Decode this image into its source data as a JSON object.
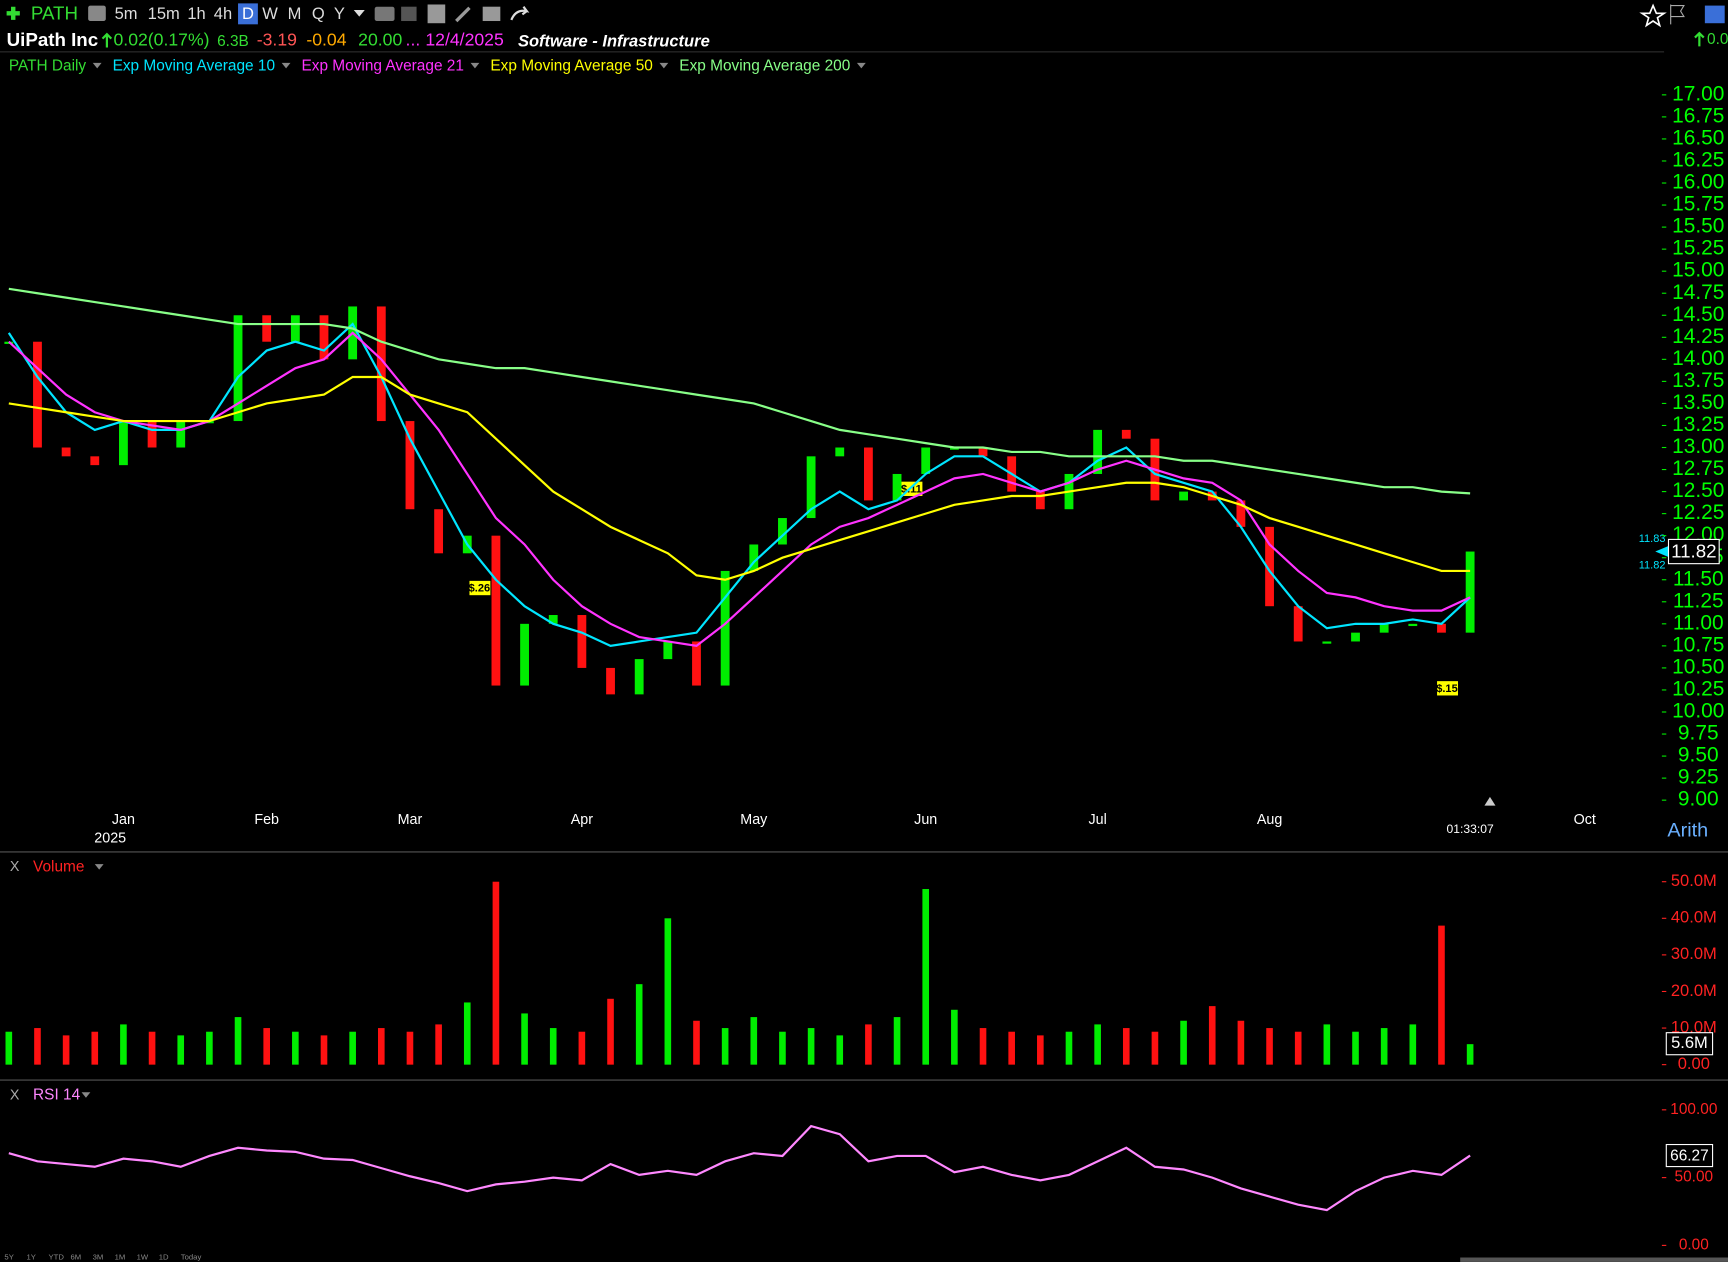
{
  "toolbar": {
    "symbol": "PATH",
    "intervals": [
      "5m",
      "15m",
      "1h",
      "4h",
      "D",
      "W",
      "M",
      "Q",
      "Y"
    ]
  },
  "header": {
    "name": "UiPath Inc",
    "change": "0.02(0.17%)",
    "market_cap": "6.3B",
    "fields": [
      "-3.19",
      "-0.04",
      "20.00",
      "..."
    ],
    "date": "12/4/2025",
    "industry": "Software - Infrastructure",
    "right_change": "0.0"
  },
  "year_label": "2025",
  "timer": "01:33:07",
  "scale_mode": "Arith",
  "close_pane": "X",
  "annotations": [
    "$.26",
    "$.11",
    "$.15"
  ],
  "close_labels": [
    "11.83",
    "11.82"
  ],
  "period_buttons": [
    "5Y",
    "1Y",
    "YTD",
    "6M",
    "3M",
    "1M",
    "1W",
    "1D",
    "Today"
  ],
  "chart_data": [
    {
      "type": "candlestick",
      "up_color": "#00ee00",
      "down_color": "#ff1111",
      "categories": [
        null,
        null,
        null,
        null,
        "Jan",
        null,
        null,
        null,
        null,
        "Feb",
        null,
        null,
        null,
        null,
        "Mar",
        null,
        null,
        null,
        null,
        null,
        "Apr",
        null,
        null,
        null,
        null,
        null,
        "May",
        null,
        null,
        null,
        null,
        null,
        "Jun",
        null,
        null,
        null,
        null,
        null,
        "Jul",
        null,
        null,
        null,
        null,
        null,
        "Aug",
        null,
        null,
        null,
        null,
        null,
        null,
        null,
        null,
        null,
        null,
        "Oct",
        null
      ],
      "series": [
        {
          "name": "PATH Daily",
          "color": "#33dd33",
          "values": [
            14.2,
            13.0,
            12.9,
            12.8,
            13.3,
            13.0,
            13.3,
            13.3,
            14.5,
            14.2,
            14.5,
            14.0,
            14.6,
            13.3,
            12.3,
            11.8,
            12.0,
            10.3,
            11.0,
            11.1,
            10.5,
            10.2,
            10.6,
            10.8,
            10.3,
            11.6,
            11.9,
            12.2,
            12.9,
            13.0,
            12.4,
            12.7,
            13.0,
            13.0,
            12.9,
            12.5,
            12.3,
            12.7,
            13.2,
            13.1,
            12.4,
            12.5,
            12.4,
            12.1,
            11.2,
            10.8,
            10.8,
            10.9,
            11.0,
            11.0,
            10.9,
            11.82,
            null,
            null,
            null,
            null,
            null
          ]
        },
        {
          "name": "Exp Moving Average 10",
          "color": "#00e5ff",
          "values": [
            14.3,
            13.8,
            13.4,
            13.2,
            13.3,
            13.2,
            13.2,
            13.3,
            13.8,
            14.1,
            14.2,
            14.1,
            14.4,
            13.8,
            13.1,
            12.5,
            11.9,
            11.5,
            11.2,
            11.0,
            10.9,
            10.75,
            10.8,
            10.85,
            10.9,
            11.3,
            11.7,
            12.0,
            12.3,
            12.5,
            12.3,
            12.4,
            12.7,
            12.9,
            12.9,
            12.7,
            12.5,
            12.6,
            12.85,
            13.0,
            12.7,
            12.6,
            12.5,
            12.1,
            11.6,
            11.2,
            10.95,
            11.0,
            11.0,
            11.05,
            11.0,
            11.3,
            null,
            null,
            null,
            null,
            null
          ]
        },
        {
          "name": "Exp Moving Average 21",
          "color": "#ff33ff",
          "values": [
            14.2,
            13.9,
            13.6,
            13.4,
            13.3,
            13.25,
            13.2,
            13.3,
            13.5,
            13.7,
            13.9,
            14.0,
            14.3,
            14.0,
            13.6,
            13.2,
            12.7,
            12.2,
            11.9,
            11.5,
            11.2,
            11.0,
            10.85,
            10.8,
            10.75,
            11.0,
            11.3,
            11.6,
            11.9,
            12.1,
            12.2,
            12.35,
            12.5,
            12.65,
            12.7,
            12.6,
            12.5,
            12.6,
            12.75,
            12.85,
            12.75,
            12.65,
            12.6,
            12.4,
            11.9,
            11.6,
            11.35,
            11.3,
            11.2,
            11.15,
            11.15,
            11.3,
            null,
            null,
            null,
            null,
            null
          ]
        },
        {
          "name": "Exp Moving Average 50",
          "color": "#ffff00",
          "values": [
            13.5,
            13.45,
            13.4,
            13.35,
            13.3,
            13.3,
            13.3,
            13.3,
            13.4,
            13.5,
            13.55,
            13.6,
            13.8,
            13.8,
            13.6,
            13.5,
            13.4,
            13.1,
            12.8,
            12.5,
            12.3,
            12.1,
            11.95,
            11.8,
            11.55,
            11.5,
            11.6,
            11.75,
            11.85,
            11.95,
            12.05,
            12.15,
            12.25,
            12.35,
            12.4,
            12.45,
            12.45,
            12.5,
            12.55,
            12.6,
            12.6,
            12.55,
            12.45,
            12.35,
            12.2,
            12.1,
            12.0,
            11.9,
            11.8,
            11.7,
            11.6,
            11.6,
            null,
            null,
            null,
            null,
            null
          ]
        },
        {
          "name": "Exp Moving Average 200",
          "color": "#88ff88",
          "values": [
            14.8,
            14.75,
            14.7,
            14.65,
            14.6,
            14.55,
            14.5,
            14.45,
            14.4,
            14.4,
            14.4,
            14.4,
            14.35,
            14.2,
            14.1,
            14.0,
            13.95,
            13.9,
            13.9,
            13.85,
            13.8,
            13.75,
            13.7,
            13.65,
            13.6,
            13.55,
            13.5,
            13.4,
            13.3,
            13.2,
            13.15,
            13.1,
            13.05,
            13.0,
            13.0,
            12.95,
            12.95,
            12.9,
            12.9,
            12.9,
            12.9,
            12.85,
            12.85,
            12.8,
            12.75,
            12.7,
            12.65,
            12.6,
            12.55,
            12.55,
            12.5,
            12.48,
            null,
            null,
            null,
            null,
            null
          ]
        }
      ],
      "ylim": [
        9,
        17
      ],
      "yticks": [
        {
          "value": 17,
          "label": "17.00"
        },
        {
          "value": 16.75,
          "label": "16.75"
        },
        {
          "value": 16.5,
          "label": "16.50"
        },
        {
          "value": 16.25,
          "label": "16.25"
        },
        {
          "value": 16,
          "label": "16.00"
        },
        {
          "value": 15.75,
          "label": "15.75"
        },
        {
          "value": 15.5,
          "label": "15.50"
        },
        {
          "value": 15.25,
          "label": "15.25"
        },
        {
          "value": 15,
          "label": "15.00"
        },
        {
          "value": 14.75,
          "label": "14.75"
        },
        {
          "value": 14.5,
          "label": "14.50"
        },
        {
          "value": 14.25,
          "label": "14.25"
        },
        {
          "value": 14,
          "label": "14.00"
        },
        {
          "value": 13.75,
          "label": "13.75"
        },
        {
          "value": 13.5,
          "label": "13.50"
        },
        {
          "value": 13.25,
          "label": "13.25"
        },
        {
          "value": 13,
          "label": "13.00"
        },
        {
          "value": 12.75,
          "label": "12.75"
        },
        {
          "value": 12.5,
          "label": "12.50"
        },
        {
          "value": 12.25,
          "label": "12.25"
        },
        {
          "value": 12,
          "label": "12.00"
        },
        {
          "value": 11.75,
          "label": "11.75"
        },
        {
          "value": 11.5,
          "label": "11.50"
        },
        {
          "value": 11.25,
          "label": "11.25"
        },
        {
          "value": 11,
          "label": "11.00"
        },
        {
          "value": 10.75,
          "label": "10.75"
        },
        {
          "value": 10.5,
          "label": "10.50"
        },
        {
          "value": 10.25,
          "label": "10.25"
        },
        {
          "value": 10,
          "label": "10.00"
        },
        {
          "value": 9.75,
          "label": "9.75"
        },
        {
          "value": 9.5,
          "label": "9.50"
        },
        {
          "value": 9.25,
          "label": "9.25"
        },
        {
          "value": 9,
          "label": "9.00"
        }
      ]
    },
    {
      "type": "bar",
      "title": "Volume",
      "up_color": "#00ee00",
      "down_color": "#ff1111",
      "values": [
        9000000,
        10000000,
        8000000,
        9000000,
        11000000,
        9000000,
        8000000,
        9000000,
        13000000,
        10000000,
        9000000,
        8000000,
        9000000,
        10000000,
        9000000,
        11000000,
        17000000,
        50000000,
        14000000,
        10000000,
        9000000,
        18000000,
        22000000,
        40000000,
        12000000,
        10000000,
        13000000,
        9000000,
        10000000,
        8000000,
        11000000,
        13000000,
        48000000,
        15000000,
        10000000,
        9000000,
        8000000,
        9000000,
        11000000,
        10000000,
        9000000,
        12000000,
        16000000,
        12000000,
        10000000,
        9000000,
        11000000,
        9000000,
        10000000,
        11000000,
        38000000,
        5600000
      ],
      "value_labels": [
        null,
        null,
        null,
        null,
        null,
        null,
        null,
        null,
        null,
        null,
        null,
        null,
        null,
        null,
        null,
        null,
        null,
        null,
        null,
        null,
        null,
        null,
        null,
        null,
        null,
        null,
        null,
        null,
        null,
        null,
        null,
        null,
        null,
        null,
        null,
        null,
        null,
        null,
        null,
        null,
        null,
        null,
        null,
        null,
        null,
        null,
        null,
        null,
        null,
        null,
        null,
        "5.6M"
      ],
      "ylim": [
        0,
        50000000
      ],
      "yticks": [
        {
          "value": 0,
          "label": "0.00"
        },
        {
          "value": 10000000,
          "label": "10.0M"
        },
        {
          "value": 20000000,
          "label": "20.0M"
        },
        {
          "value": 30000000,
          "label": "30.0M"
        },
        {
          "value": 40000000,
          "label": "40.0M"
        },
        {
          "value": 50000000,
          "label": "50.0M"
        }
      ]
    },
    {
      "type": "line",
      "title": "RSI 14",
      "color": "#ff88ff",
      "values": [
        68,
        62,
        60,
        58,
        64,
        62,
        58,
        66,
        72,
        70,
        69,
        64,
        63,
        57,
        51,
        46,
        40,
        45,
        47,
        50,
        48,
        60,
        52,
        55,
        52,
        62,
        68,
        66,
        88,
        82,
        62,
        66,
        66,
        54,
        58,
        52,
        48,
        52,
        62,
        72,
        58,
        56,
        50,
        42,
        36,
        30,
        26,
        40,
        50,
        55,
        52,
        66.27
      ],
      "ylim": [
        0,
        100
      ],
      "yticks": [
        {
          "value": 0,
          "label": "0.00"
        },
        {
          "value": 50,
          "label": "50.00"
        },
        {
          "value": 100,
          "label": "100.00"
        }
      ]
    }
  ]
}
